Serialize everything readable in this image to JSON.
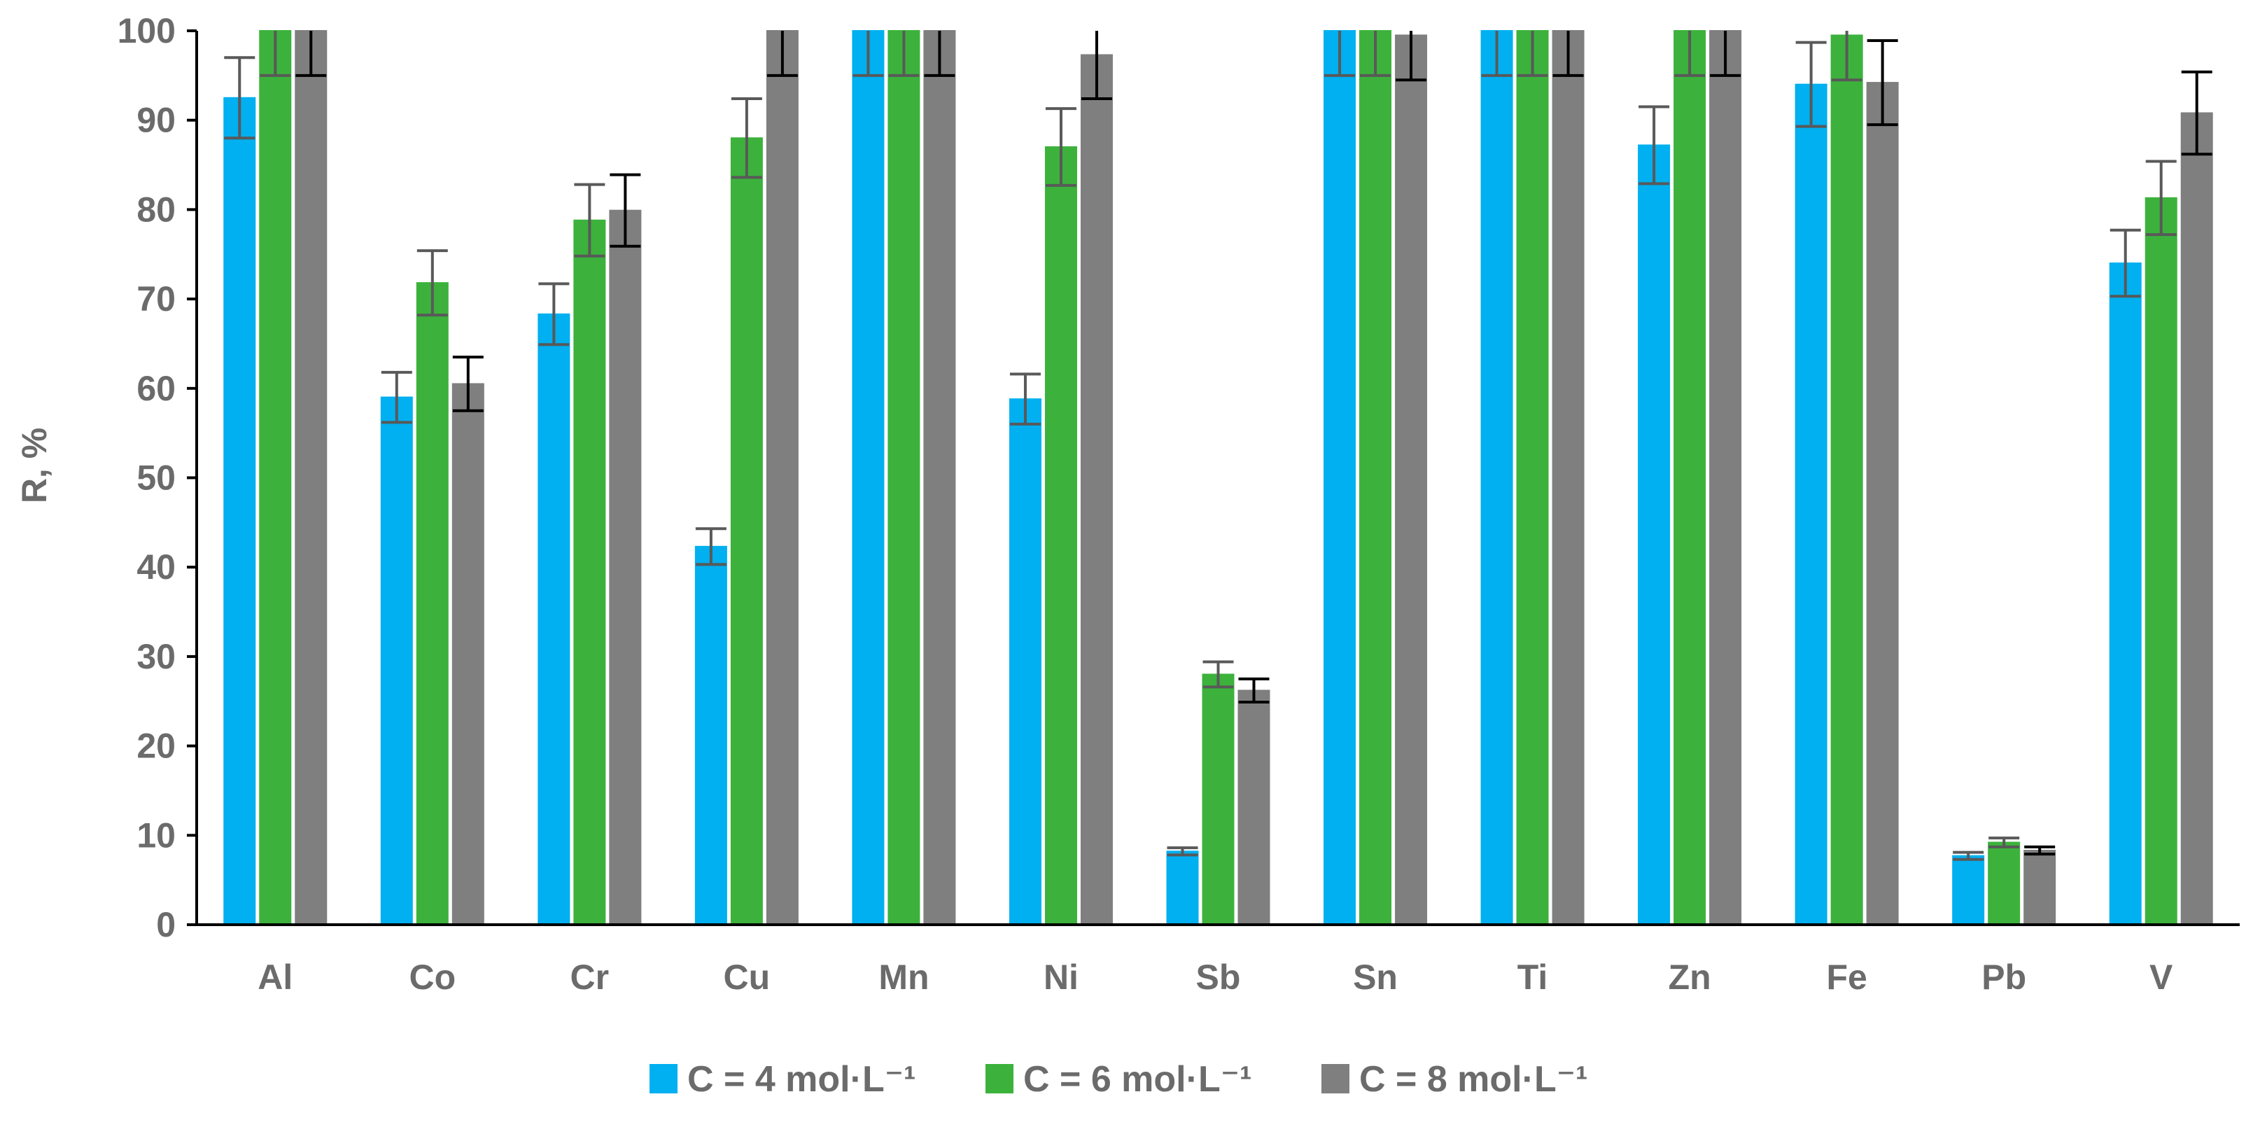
{
  "chart_data": {
    "type": "bar",
    "title": "",
    "xlabel": "",
    "ylabel": "R, %",
    "ylim": [
      0,
      100
    ],
    "yticks": [
      0,
      10,
      20,
      30,
      40,
      50,
      60,
      70,
      80,
      90,
      100
    ],
    "grid": false,
    "legend_position": "bottom",
    "categories": [
      "Al",
      "Co",
      "Cr",
      "Cu",
      "Mn",
      "Ni",
      "Sb",
      "Sn",
      "Ti",
      "Zn",
      "Fe",
      "Pb",
      "V"
    ],
    "series": [
      {
        "name": "C = 4 mol·L⁻¹",
        "color": "#00b0f0",
        "errcolor": "#595959",
        "values": [
          92.5,
          59,
          68.3,
          42.3,
          100,
          58.8,
          8.2,
          100,
          100,
          87.2,
          94,
          7.7,
          74
        ],
        "errors": [
          4.5,
          2.8,
          3.4,
          2.0,
          5.0,
          2.8,
          0.4,
          5.0,
          5.0,
          4.3,
          4.7,
          0.4,
          3.7
        ]
      },
      {
        "name": "C = 6 mol·L⁻¹",
        "color": "#3cb23c",
        "errcolor": "#595959",
        "values": [
          100,
          71.8,
          78.8,
          88,
          100,
          87,
          28,
          100,
          100,
          100,
          99.5,
          9.2,
          81.3
        ],
        "errors": [
          5.0,
          3.6,
          4.0,
          4.4,
          5.0,
          4.3,
          1.4,
          5.0,
          5.0,
          5.0,
          5.0,
          0.5,
          4.1
        ]
      },
      {
        "name": "C = 8 mol·L⁻¹",
        "color": "#7f7f7f",
        "errcolor": "#000000",
        "values": [
          100,
          60.5,
          79.9,
          100,
          100,
          97.3,
          26.2,
          99.5,
          100,
          100,
          94.2,
          8.3,
          90.8
        ],
        "errors": [
          5.0,
          3.0,
          4.0,
          5.0,
          5.0,
          4.9,
          1.3,
          5.0,
          5.0,
          5.0,
          4.7,
          0.4,
          4.6
        ]
      }
    ]
  }
}
